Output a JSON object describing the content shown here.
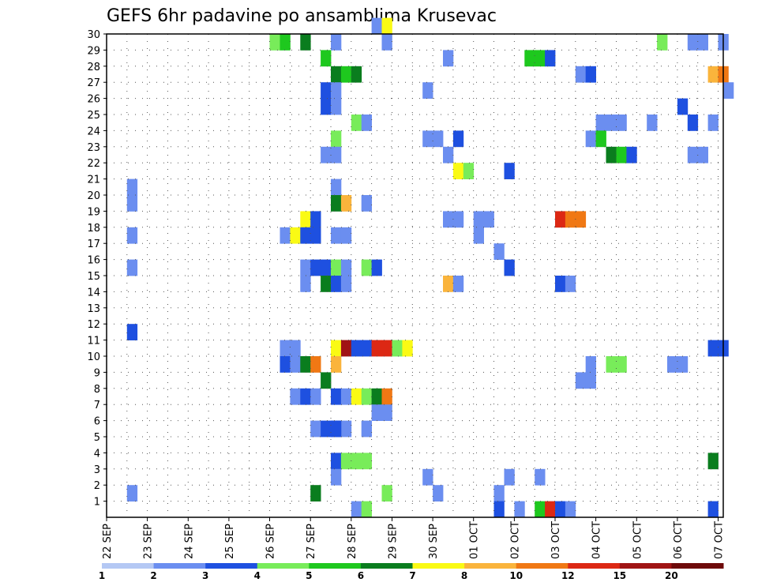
{
  "chart_data": {
    "type": "heatmap",
    "title": "GEFS 6hr padavine po ansamblima Krusevac",
    "xlabel": "",
    "ylabel": "",
    "x_tick_labels": [
      "22 SEP",
      "23 SEP",
      "24 SEP",
      "25 SEP",
      "26 SEP",
      "27 SEP",
      "28 SEP",
      "29 SEP",
      "30 SEP",
      "01 OCT",
      "02 OCT",
      "03 OCT",
      "04 OCT",
      "05 OCT",
      "06 OCT",
      "07 OCT"
    ],
    "x_axis_days": [
      0,
      15.125
    ],
    "y_tick_labels": [
      "1",
      "2",
      "3",
      "4",
      "5",
      "6",
      "7",
      "8",
      "9",
      "10",
      "11",
      "12",
      "13",
      "14",
      "15",
      "16",
      "17",
      "18",
      "19",
      "20",
      "21",
      "22",
      "23",
      "24",
      "25",
      "26",
      "27",
      "28",
      "29",
      "30"
    ],
    "y_range": [
      0,
      30
    ],
    "grid": true,
    "colorbar": {
      "labels": [
        "1",
        "2",
        "3",
        "4",
        "5",
        "6",
        "7",
        "8",
        "10",
        "12",
        "15",
        "20"
      ],
      "colors": [
        "#b4c8f4",
        "#6b8ef0",
        "#1e50e0",
        "#78ec5a",
        "#1ec81e",
        "#0a7d1e",
        "#fafa14",
        "#fab43c",
        "#f07814",
        "#dc2814",
        "#a01414",
        "#6e0a0a"
      ]
    },
    "cells": [
      [
        29,
        4.0,
        3
      ],
      [
        29,
        4.25,
        4
      ],
      [
        29,
        4.75,
        5
      ],
      [
        29,
        5.5,
        1
      ],
      [
        29,
        6.75,
        1
      ],
      [
        29,
        13.5,
        3
      ],
      [
        29,
        14.25,
        1
      ],
      [
        29,
        14.5,
        1
      ],
      [
        29,
        15.0,
        1
      ],
      [
        30,
        6.5,
        1
      ],
      [
        30,
        6.75,
        6
      ],
      [
        28,
        5.25,
        4
      ],
      [
        28,
        8.25,
        1
      ],
      [
        28,
        10.25,
        4
      ],
      [
        28,
        10.5,
        4
      ],
      [
        28,
        10.75,
        2
      ],
      [
        27,
        5.5,
        5
      ],
      [
        27,
        5.75,
        4
      ],
      [
        27,
        6.0,
        5
      ],
      [
        27,
        11.5,
        1
      ],
      [
        27,
        11.75,
        2
      ],
      [
        27,
        14.75,
        7
      ],
      [
        27,
        15.0,
        8
      ],
      [
        26,
        5.25,
        2
      ],
      [
        26,
        5.5,
        1
      ],
      [
        26,
        7.75,
        1
      ],
      [
        26,
        15.125,
        1
      ],
      [
        25,
        5.25,
        2
      ],
      [
        25,
        5.5,
        1
      ],
      [
        25,
        14.0,
        2
      ],
      [
        24,
        6.0,
        3
      ],
      [
        24,
        6.25,
        1
      ],
      [
        24,
        12.0,
        1
      ],
      [
        24,
        12.25,
        1
      ],
      [
        24,
        12.5,
        1
      ],
      [
        24,
        13.25,
        1
      ],
      [
        24,
        14.25,
        2
      ],
      [
        24,
        14.75,
        1
      ],
      [
        23,
        5.5,
        3
      ],
      [
        23,
        7.75,
        1
      ],
      [
        23,
        8.0,
        1
      ],
      [
        23,
        8.5,
        2
      ],
      [
        23,
        11.75,
        1
      ],
      [
        23,
        12.0,
        4
      ],
      [
        22,
        5.25,
        1
      ],
      [
        22,
        5.5,
        1
      ],
      [
        22,
        8.25,
        1
      ],
      [
        22,
        12.25,
        5
      ],
      [
        22,
        12.5,
        4
      ],
      [
        22,
        12.75,
        2
      ],
      [
        22,
        14.25,
        1
      ],
      [
        22,
        14.5,
        1
      ],
      [
        21,
        8.5,
        6
      ],
      [
        21,
        8.75,
        3
      ],
      [
        21,
        9.75,
        2
      ],
      [
        20,
        0.5,
        1
      ],
      [
        20,
        5.5,
        1
      ],
      [
        19,
        0.5,
        1
      ],
      [
        19,
        5.5,
        5
      ],
      [
        19,
        5.75,
        7
      ],
      [
        19,
        6.25,
        1
      ],
      [
        18,
        4.75,
        6
      ],
      [
        18,
        5.0,
        2
      ],
      [
        18,
        8.25,
        1
      ],
      [
        18,
        8.5,
        1
      ],
      [
        18,
        9.0,
        1
      ],
      [
        18,
        9.25,
        1
      ],
      [
        18,
        11.0,
        9
      ],
      [
        18,
        11.25,
        8
      ],
      [
        18,
        11.5,
        8
      ],
      [
        17,
        0.5,
        1
      ],
      [
        17,
        4.25,
        1
      ],
      [
        17,
        4.5,
        6
      ],
      [
        17,
        4.75,
        2
      ],
      [
        17,
        5.0,
        2
      ],
      [
        17,
        5.5,
        1
      ],
      [
        17,
        5.75,
        1
      ],
      [
        17,
        9.0,
        1
      ],
      [
        16,
        9.5,
        1
      ],
      [
        15,
        0.5,
        1
      ],
      [
        15,
        4.75,
        1
      ],
      [
        15,
        5.0,
        2
      ],
      [
        15,
        5.25,
        2
      ],
      [
        15,
        5.5,
        3
      ],
      [
        15,
        5.75,
        1
      ],
      [
        15,
        6.25,
        3
      ],
      [
        15,
        6.5,
        2
      ],
      [
        15,
        9.75,
        2
      ],
      [
        14,
        4.75,
        1
      ],
      [
        14,
        5.25,
        5
      ],
      [
        14,
        5.5,
        2
      ],
      [
        14,
        5.75,
        1
      ],
      [
        14,
        8.25,
        7
      ],
      [
        14,
        8.5,
        1
      ],
      [
        14,
        11.0,
        2
      ],
      [
        14,
        11.25,
        1
      ],
      [
        11,
        0.5,
        2
      ],
      [
        10,
        4.25,
        1
      ],
      [
        10,
        4.5,
        1
      ],
      [
        10,
        5.5,
        6
      ],
      [
        10,
        5.75,
        10
      ],
      [
        10,
        6.0,
        2
      ],
      [
        10,
        6.25,
        2
      ],
      [
        10,
        6.5,
        9
      ],
      [
        10,
        6.75,
        9
      ],
      [
        10,
        7.0,
        3
      ],
      [
        10,
        7.25,
        6
      ],
      [
        10,
        14.75,
        2
      ],
      [
        10,
        15.0,
        2
      ],
      [
        9,
        4.25,
        2
      ],
      [
        9,
        4.5,
        1
      ],
      [
        9,
        4.75,
        5
      ],
      [
        9,
        5.0,
        8
      ],
      [
        9,
        5.5,
        7
      ],
      [
        9,
        11.75,
        1
      ],
      [
        9,
        12.25,
        3
      ],
      [
        9,
        12.5,
        3
      ],
      [
        9,
        13.75,
        1
      ],
      [
        9,
        14.0,
        1
      ],
      [
        8,
        5.25,
        5
      ],
      [
        8,
        11.5,
        1
      ],
      [
        8,
        11.75,
        1
      ],
      [
        7,
        4.5,
        1
      ],
      [
        7,
        4.75,
        2
      ],
      [
        7,
        5.0,
        1
      ],
      [
        7,
        5.5,
        2
      ],
      [
        7,
        5.75,
        1
      ],
      [
        7,
        6.0,
        6
      ],
      [
        7,
        6.25,
        3
      ],
      [
        7,
        6.5,
        5
      ],
      [
        7,
        6.75,
        8
      ],
      [
        6,
        6.5,
        1
      ],
      [
        6,
        6.75,
        1
      ],
      [
        5,
        5.0,
        1
      ],
      [
        5,
        5.25,
        2
      ],
      [
        5,
        5.5,
        2
      ],
      [
        5,
        5.75,
        1
      ],
      [
        5,
        6.25,
        1
      ],
      [
        3,
        5.5,
        2
      ],
      [
        5,
        5.5,
        2
      ],
      [
        3,
        5.75,
        3
      ],
      [
        3,
        6.0,
        3
      ],
      [
        3,
        6.25,
        3
      ],
      [
        3,
        14.75,
        5
      ],
      [
        2,
        5.5,
        1
      ],
      [
        2,
        7.75,
        1
      ],
      [
        2,
        9.75,
        1
      ],
      [
        2,
        10.5,
        1
      ],
      [
        1,
        0.5,
        1
      ],
      [
        1,
        5.0,
        5
      ],
      [
        1,
        6.75,
        3
      ],
      [
        1,
        8.0,
        1
      ],
      [
        1,
        9.5,
        1
      ],
      [
        0,
        6.0,
        1
      ],
      [
        0,
        6.25,
        3
      ],
      [
        0,
        9.5,
        2
      ],
      [
        0,
        10.0,
        1
      ],
      [
        0,
        10.5,
        4
      ],
      [
        0,
        10.75,
        9
      ],
      [
        0,
        11.0,
        2
      ],
      [
        0,
        11.25,
        1
      ],
      [
        0,
        14.75,
        2
      ]
    ]
  }
}
